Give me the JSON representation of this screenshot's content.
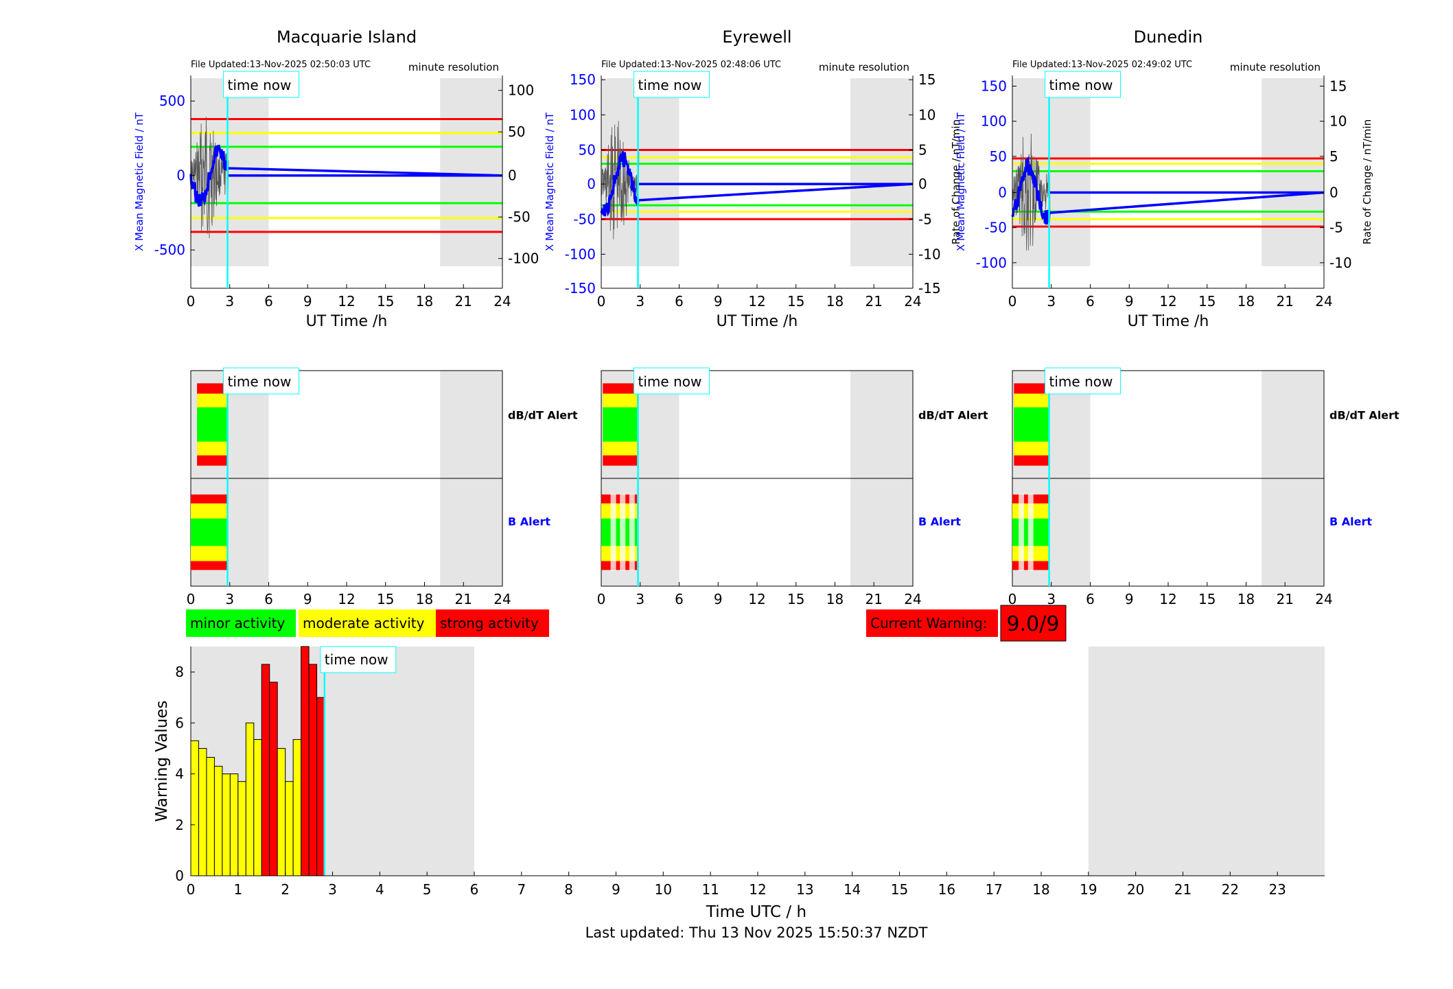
{
  "colors": {
    "minor": "#00ff00",
    "moderate": "#ffff00",
    "strong": "#ff0000",
    "field": "#0000ff",
    "now_line": "#00ffff",
    "night_shade": "#e5e5e5"
  },
  "time_now_label": "time now",
  "stations": [
    {
      "title": "Macquarie Island",
      "file_updated": "File Updated:13-Nov-2025 02:50:03 UTC",
      "resolution": "minute resolution",
      "left_ylabel": "X Mean Magnetic Field / nT",
      "right_ylabel": "",
      "xlabel": "UT Time /h",
      "left_ticks": [
        "500",
        "0",
        "-500"
      ],
      "right_ticks": [
        "100",
        "50",
        "0",
        "-50",
        "-100"
      ],
      "x_ticks": [
        "0",
        "3",
        "6",
        "9",
        "12",
        "15",
        "18",
        "21",
        "24"
      ],
      "alert_labels": {
        "dbdt": "dB/dT Alert",
        "b": "B Alert"
      }
    },
    {
      "title": "Eyrewell",
      "file_updated": "File Updated:13-Nov-2025 02:48:06 UTC",
      "resolution": "minute resolution",
      "left_ylabel": "X Mean Magnetic Field / nT",
      "right_ylabel": "Rate of Change / nT/min",
      "xlabel": "UT Time /h",
      "left_ticks": [
        "150",
        "100",
        "50",
        "0",
        "-50",
        "-100",
        "-150"
      ],
      "right_ticks": [
        "15",
        "10",
        "5",
        "0",
        "-5",
        "-10",
        "-15"
      ],
      "x_ticks": [
        "0",
        "3",
        "6",
        "9",
        "12",
        "15",
        "18",
        "21",
        "24"
      ],
      "alert_labels": {
        "dbdt": "dB/dT Alert",
        "b": "B Alert"
      }
    },
    {
      "title": "Dunedin",
      "file_updated": "File Updated:13-Nov-2025 02:49:02 UTC",
      "resolution": "minute resolution",
      "left_ylabel": "X Mean Magnetic Field / nT",
      "right_ylabel": "Rate of Change / nT/min",
      "xlabel": "UT Time /h",
      "left_ticks": [
        "150",
        "100",
        "50",
        "0",
        "-50",
        "-100"
      ],
      "right_ticks": [
        "15",
        "10",
        "5",
        "0",
        "-5",
        "-10"
      ],
      "x_ticks": [
        "0",
        "3",
        "6",
        "9",
        "12",
        "15",
        "18",
        "21",
        "24"
      ],
      "alert_labels": {
        "dbdt": "dB/dT Alert",
        "b": "B Alert"
      }
    }
  ],
  "legend": {
    "minor": "minor activity",
    "moderate": "moderate activity",
    "strong": "strong activity"
  },
  "current_warning": {
    "label": "Current Warning:",
    "value": "9.0/9"
  },
  "footer": "Last updated: Thu 13 Nov 2025 15:50:37 NZDT",
  "chart_data": {
    "type": "bar",
    "title": "",
    "xlabel": "Time UTC / h",
    "ylabel": "Warning Values",
    "xlim": [
      0,
      24
    ],
    "ylim": [
      0,
      9
    ],
    "y_ticks": [
      "0",
      "2",
      "4",
      "6",
      "8"
    ],
    "x_ticks": [
      "0",
      "1",
      "2",
      "3",
      "4",
      "5",
      "6",
      "7",
      "8",
      "9",
      "10",
      "11",
      "12",
      "13",
      "14",
      "15",
      "16",
      "17",
      "18",
      "19",
      "20",
      "21",
      "22",
      "23"
    ],
    "bar_width_h": 0.1667,
    "x": [
      0,
      0.1667,
      0.3333,
      0.5,
      0.6667,
      0.8333,
      1.0,
      1.1667,
      1.3333,
      1.5,
      1.6667,
      1.8333,
      2.0,
      2.1667,
      2.3333,
      2.5,
      2.6667
    ],
    "values": [
      5.3,
      5.0,
      4.65,
      4.3,
      4.0,
      4.0,
      3.7,
      6.0,
      5.35,
      8.3,
      7.6,
      5.0,
      3.7,
      5.35,
      9.0,
      8.3,
      7.0
    ],
    "levels": [
      "moderate",
      "moderate",
      "moderate",
      "moderate",
      "moderate",
      "moderate",
      "moderate",
      "moderate",
      "moderate",
      "strong",
      "strong",
      "moderate",
      "moderate",
      "moderate",
      "strong",
      "strong",
      "strong"
    ],
    "time_now_h": 2.83,
    "night_shade_h": [
      [
        0,
        6
      ],
      [
        19,
        24
      ]
    ]
  }
}
